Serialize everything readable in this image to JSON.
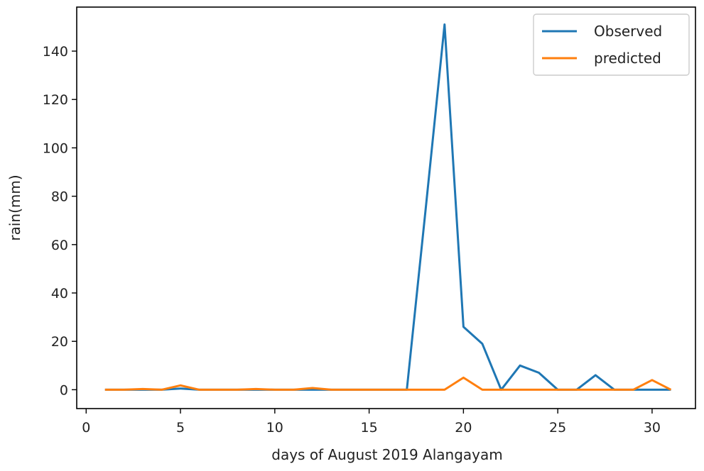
{
  "chart_data": {
    "type": "line",
    "xlabel": "days of August 2019 Alangayam",
    "ylabel": "rain(mm)",
    "xlim": [
      -0.5,
      32.3
    ],
    "ylim": [
      -7.8,
      158.2
    ],
    "xticks": [
      0,
      5,
      10,
      15,
      20,
      25,
      30
    ],
    "yticks": [
      0,
      20,
      40,
      60,
      80,
      100,
      120,
      140
    ],
    "x": [
      1,
      2,
      3,
      4,
      5,
      6,
      7,
      8,
      9,
      10,
      11,
      12,
      13,
      14,
      15,
      16,
      17,
      18,
      19,
      20,
      21,
      22,
      23,
      24,
      25,
      26,
      27,
      28,
      29,
      30,
      31
    ],
    "series": [
      {
        "name": "Observed",
        "color": "#1f77b4",
        "values": [
          0,
          0,
          0,
          0,
          0.5,
          0,
          0,
          0,
          0,
          0,
          0,
          0,
          0,
          0,
          0,
          0,
          0,
          75,
          151,
          26,
          19,
          0,
          10,
          7,
          0,
          0,
          6,
          0,
          0,
          0,
          0
        ]
      },
      {
        "name": "predicted",
        "color": "#ff7f0e",
        "values": [
          0,
          0,
          0.3,
          0,
          1.8,
          0,
          0,
          0,
          0.3,
          0,
          0,
          0.7,
          0,
          0,
          0,
          0,
          0,
          0,
          0,
          5,
          0,
          0,
          0,
          0,
          0,
          0,
          0,
          0,
          0,
          4,
          0
        ]
      }
    ],
    "legend_position": "top-right",
    "grid": false
  }
}
